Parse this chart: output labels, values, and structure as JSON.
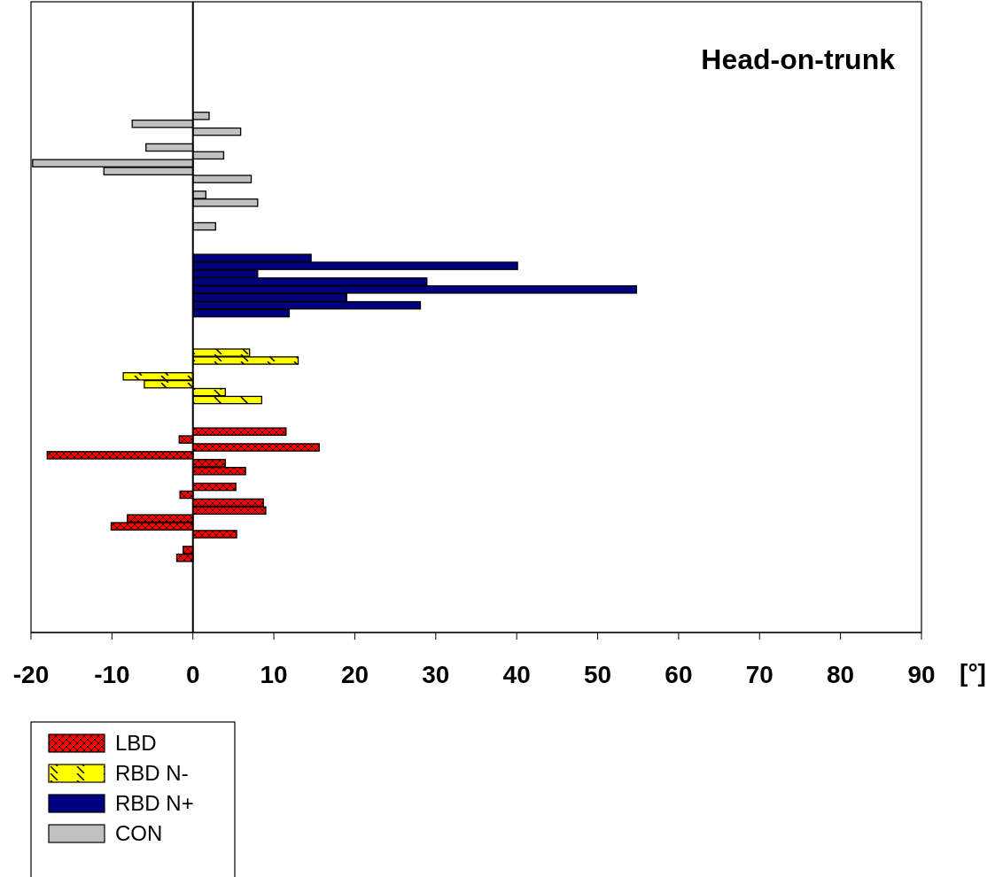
{
  "chart_data": {
    "type": "bar",
    "orientation": "horizontal",
    "title": "Head-on-trunk",
    "xlabel": "[°]",
    "categories": [
      null,
      null,
      null,
      null,
      null,
      null,
      null,
      null,
      null,
      null,
      null,
      null,
      null,
      null,
      null,
      null,
      null,
      null,
      null,
      null,
      null,
      null,
      null,
      null,
      null,
      null,
      null,
      null,
      null,
      null,
      null,
      null,
      null,
      null,
      null,
      null,
      null,
      null,
      null,
      null,
      null,
      null,
      null,
      null,
      null,
      null,
      null,
      null,
      null,
      null,
      null,
      null,
      null,
      null,
      null,
      null,
      null,
      null,
      null,
      null,
      null,
      null,
      null,
      null,
      null,
      null,
      null,
      null,
      null,
      null,
      null,
      null,
      null,
      null,
      null,
      null,
      null,
      null,
      null,
      null
    ],
    "xlim": [
      -20,
      90
    ],
    "xticks": [
      -20,
      -10,
      0,
      10,
      20,
      30,
      40,
      50,
      60,
      70,
      80,
      90
    ],
    "legend": "bottom left",
    "series": [
      {
        "name": "LBD",
        "color": "#ff0000",
        "values": [
          null,
          null,
          null,
          null,
          null,
          null,
          null,
          null,
          null,
          null,
          null,
          null,
          null,
          null,
          null,
          null,
          null,
          null,
          null,
          null,
          null,
          null,
          null,
          null,
          null,
          null,
          null,
          null,
          null,
          null,
          null,
          null,
          null,
          null,
          null,
          null,
          null,
          null,
          null,
          null,
          null,
          null,
          null,
          null,
          null,
          null,
          null,
          null,
          null,
          null,
          null,
          null,
          null,
          null,
          11.5,
          -1.7,
          15.6,
          -18.0,
          4.0,
          6.5,
          null,
          5.3,
          -1.6,
          8.7,
          9.0,
          -8.1,
          -10.1,
          5.4,
          null,
          -1.2,
          -2.0,
          null,
          null,
          null,
          null,
          null,
          null,
          null,
          null,
          null
        ]
      },
      {
        "name": "RBD N-",
        "color": "#ffff00",
        "values": [
          null,
          null,
          null,
          null,
          null,
          null,
          null,
          null,
          null,
          null,
          null,
          null,
          null,
          null,
          null,
          null,
          null,
          null,
          null,
          null,
          null,
          null,
          null,
          null,
          null,
          null,
          null,
          null,
          null,
          null,
          null,
          null,
          null,
          null,
          null,
          null,
          null,
          null,
          null,
          null,
          null,
          null,
          null,
          null,
          7.0,
          13.0,
          null,
          -8.6,
          -6.0,
          4.0,
          8.5,
          null,
          null,
          null,
          null,
          null,
          null,
          null,
          null,
          null,
          null,
          null,
          null,
          null,
          null,
          null,
          null,
          null,
          null,
          null,
          null,
          null,
          null,
          null,
          null,
          null,
          null,
          null,
          null,
          null
        ]
      },
      {
        "name": "RBD N+",
        "color": "#000080",
        "values": [
          null,
          null,
          null,
          null,
          null,
          null,
          null,
          null,
          null,
          null,
          null,
          null,
          null,
          null,
          null,
          null,
          null,
          null,
          null,
          null,
          null,
          null,
          null,
          null,
          null,
          null,
          null,
          null,
          null,
          null,
          null,
          null,
          14.6,
          40.1,
          8.0,
          28.9,
          54.8,
          19.0,
          28.1,
          11.9,
          null,
          null,
          null,
          null,
          null,
          null,
          null,
          null,
          null,
          null,
          null,
          null,
          null,
          null,
          null,
          null,
          null,
          null,
          null,
          null,
          null,
          null,
          null,
          null,
          null,
          null,
          null,
          null,
          null,
          null,
          null,
          null,
          null,
          null,
          null,
          null,
          null,
          null,
          null,
          null
        ]
      },
      {
        "name": "CON",
        "color": "#c0c0c0",
        "values": [
          null,
          null,
          null,
          null,
          null,
          null,
          null,
          null,
          null,
          null,
          null,
          null,
          null,
          null,
          2.0,
          -7.5,
          5.9,
          null,
          -5.8,
          3.8,
          -19.8,
          -11.0,
          7.2,
          null,
          1.6,
          8.0,
          null,
          null,
          2.8,
          null,
          null,
          null,
          null,
          null,
          null,
          null,
          null,
          null,
          null,
          null,
          null,
          null,
          null,
          null,
          null,
          null,
          null,
          null,
          null,
          null,
          null,
          null,
          null,
          null,
          null,
          null,
          null,
          null,
          null,
          null,
          null,
          null,
          null,
          null,
          null,
          null,
          null,
          null,
          null,
          null,
          null,
          null,
          null,
          null,
          null,
          null,
          null,
          null,
          null,
          null
        ]
      }
    ]
  }
}
